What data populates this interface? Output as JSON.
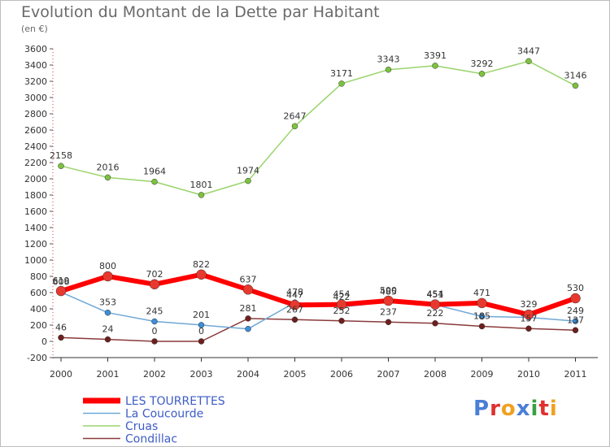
{
  "header": {
    "title": "Evolution du Montant de la Dette par Habitant",
    "subtitle": "(en €)"
  },
  "logo": {
    "text": "Proxiti",
    "letter_colors": [
      "#4a7fd6",
      "#e0302e",
      "#f0a020",
      "#4a7fd6",
      "#3aa043",
      "#e0302e",
      "#f0a020"
    ]
  },
  "chart_data": {
    "type": "line",
    "title": "Evolution du Montant de la Dette par Habitant",
    "subtitle": "(en €)",
    "xlabel": "",
    "ylabel": "",
    "categories": [
      "2000",
      "2001",
      "2002",
      "2003",
      "2004",
      "2005",
      "2006",
      "2007",
      "2008",
      "2009",
      "2010",
      "2011"
    ],
    "ylim": [
      -200,
      3600
    ],
    "yticks": [
      -200,
      0,
      200,
      400,
      600,
      800,
      1000,
      1200,
      1400,
      1600,
      1800,
      2000,
      2200,
      2400,
      2600,
      2800,
      3000,
      3200,
      3400,
      3600
    ],
    "grid": false,
    "legend_position": "bottom-left",
    "series": [
      {
        "name": "LES TOURRETTES",
        "color": "#ff0000",
        "marker_color": "#e8392f",
        "values": [
          619,
          800,
          702,
          822,
          637,
          447,
          454,
          500,
          454,
          471,
          329,
          530
        ],
        "labels": [
          "619",
          "800",
          "702",
          "822",
          "637",
          "447",
          "454",
          "500",
          "454",
          "471",
          "329",
          "530"
        ]
      },
      {
        "name": "La Coucourde",
        "color": "#6fa8d6",
        "marker_color": "#3d8ed4",
        "values": [
          606,
          353,
          245,
          201,
          153,
          478,
          422,
          485,
          451,
          306,
          295,
          249
        ],
        "labels": [
          "606",
          "353",
          "245",
          "201",
          "",
          "478",
          "422",
          "485",
          "451",
          "",
          "",
          "249"
        ]
      },
      {
        "name": "Cruas",
        "color": "#9ad46c",
        "marker_color": "#7cc23f",
        "values": [
          2158,
          2016,
          1964,
          1801,
          1974,
          2647,
          3171,
          3343,
          3391,
          3292,
          3447,
          3146
        ],
        "labels": [
          "2158",
          "2016",
          "1964",
          "1801",
          "1974",
          "2647",
          "3171",
          "3343",
          "3391",
          "3292",
          "3447",
          "3146"
        ]
      },
      {
        "name": "Condillac",
        "color": "#8a3a3a",
        "marker_color": "#6e1f1f",
        "values": [
          46,
          24,
          0,
          0,
          281,
          267,
          252,
          237,
          222,
          185,
          157,
          137
        ],
        "labels": [
          "46",
          "24",
          "0",
          "0",
          "281",
          "267",
          "252",
          "237",
          "222",
          "185",
          "157",
          "137"
        ]
      }
    ]
  }
}
